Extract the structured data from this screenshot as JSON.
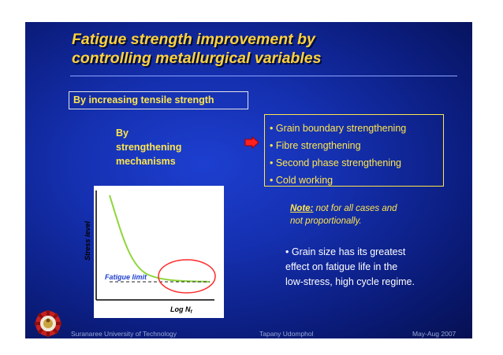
{
  "title": {
    "line1": "Fatigue strength improvement by",
    "line2": "controlling metallurgical variables"
  },
  "subtitle_box": "By increasing tensile strength",
  "by_text": [
    "By",
    "strengthening",
    "mechanisms"
  ],
  "mechanisms": [
    "• Grain boundary strengthening",
    "• Fibre strengthening",
    "• Second phase strengthening",
    "• Cold working"
  ],
  "note": {
    "label": "Note:",
    "line1": " not for all cases and",
    "line2": "not proportionally."
  },
  "grain_size_text": [
    "• Grain size has its greatest",
    "effect on fatigue life in the",
    "low-stress, high cycle regime."
  ],
  "chart": {
    "y_axis_label": "Stress level",
    "x_axis_label": "Log N",
    "x_axis_subscript": "f",
    "annotation": "Fatigue limit"
  },
  "chart_data": {
    "type": "line",
    "ylabel": "Stress level",
    "xlabel": "Log Nf",
    "annotations": [
      "Fatigue limit"
    ],
    "series_color": "#8fd63c",
    "highlight_color": "#ff2a2a"
  },
  "footer": {
    "left": "Suranaree University of Technology",
    "center": "Tapany Udomphol",
    "right": "May-Aug   2007"
  },
  "colors": {
    "title": "#ffd23a",
    "text_yellow": "#ffe64d",
    "background": "#1530b0",
    "arrow": "#ff2020"
  }
}
